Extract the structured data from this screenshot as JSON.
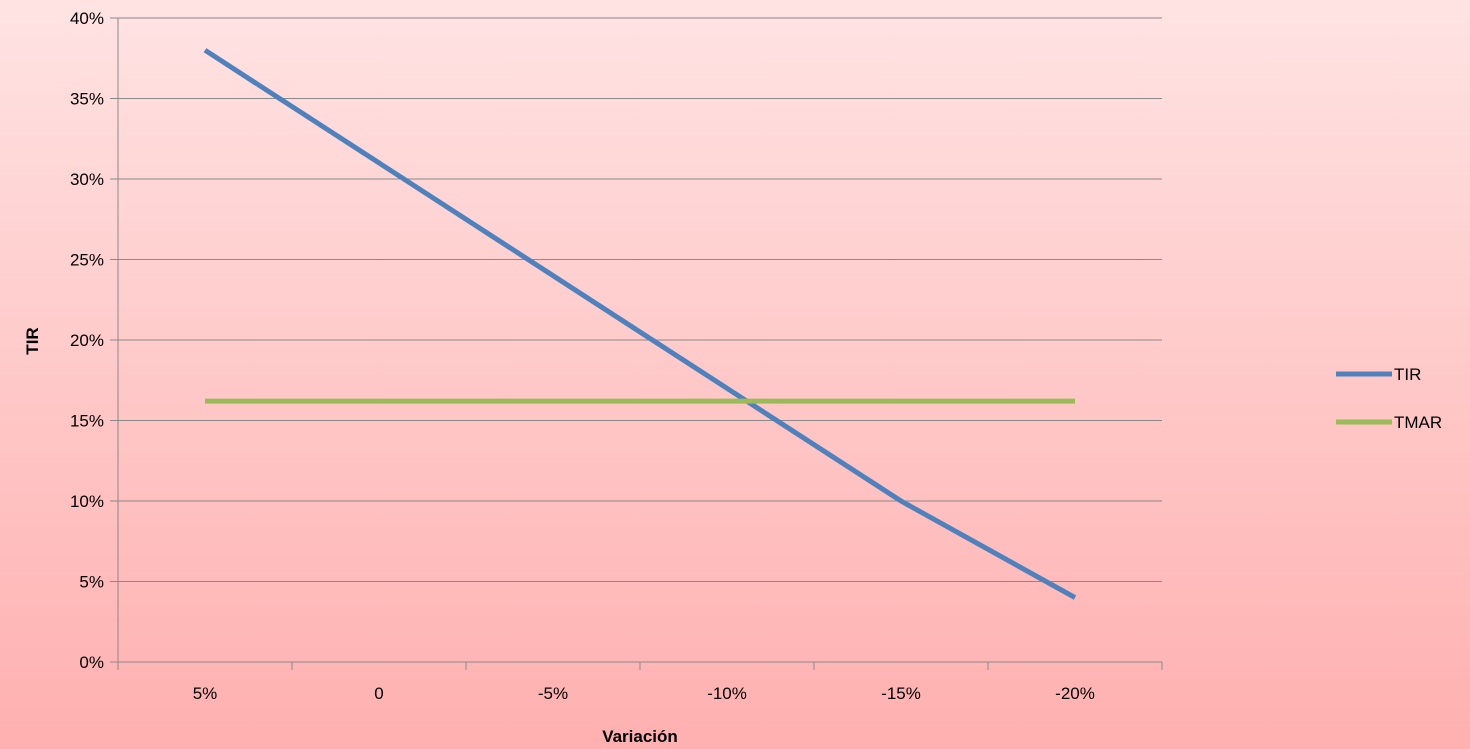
{
  "chart_data": {
    "type": "line",
    "title": "",
    "xlabel": "Variación",
    "ylabel": "TIR",
    "categories": [
      "5%",
      "0",
      "-5%",
      "-10%",
      "-15%",
      "-20%"
    ],
    "y_ticks": [
      "0%",
      "5%",
      "10%",
      "15%",
      "20%",
      "25%",
      "30%",
      "35%",
      "40%"
    ],
    "ylim": [
      0,
      0.4
    ],
    "grid": "horizontal",
    "legend_position": "right",
    "series": [
      {
        "name": "TIR",
        "values": [
          0.38,
          0.31,
          0.24,
          0.17,
          0.1,
          0.04
        ],
        "color": "#4f81bd"
      },
      {
        "name": "TMAR",
        "values": [
          0.162,
          0.162,
          0.162,
          0.162,
          0.162,
          0.162
        ],
        "color": "#9bbb59"
      }
    ]
  }
}
